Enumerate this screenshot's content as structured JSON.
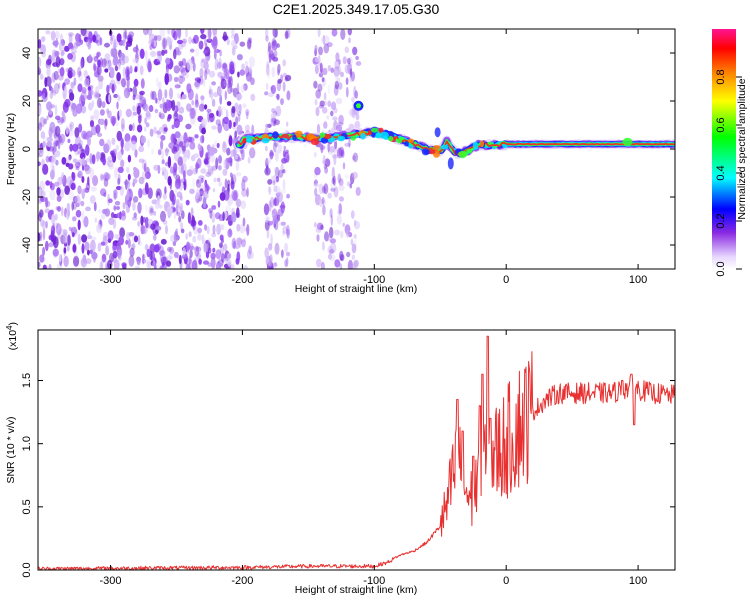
{
  "title": "C2E1.2025.349.17.05.G30",
  "chart_data": [
    {
      "type": "heatmap",
      "name": "spectrogram",
      "xlabel": "Height of straight line (km)",
      "ylabel": "Frequency (Hz)",
      "xlim": [
        -355,
        128
      ],
      "ylim": [
        -50,
        50
      ],
      "xticks": [
        -300,
        -200,
        -100,
        0,
        100
      ],
      "yticks": [
        -40,
        -20,
        0,
        20,
        40
      ],
      "colorbar": {
        "label": "Normalized spectral amplitude",
        "range": [
          0,
          1
        ],
        "ticks": [
          "0.0",
          "0.2",
          "0.4",
          "0.6",
          "0.8"
        ]
      },
      "ridge": [
        [
          -200,
          4
        ],
        [
          -190,
          4.5
        ],
        [
          -175,
          5
        ],
        [
          -160,
          5
        ],
        [
          -145,
          4.5
        ],
        [
          -130,
          5
        ],
        [
          -115,
          6
        ],
        [
          -100,
          7
        ],
        [
          -90,
          6
        ],
        [
          -80,
          4
        ],
        [
          -70,
          2
        ],
        [
          -60,
          0
        ],
        [
          -50,
          -1
        ],
        [
          -45,
          3
        ],
        [
          -38,
          -2
        ],
        [
          -30,
          -1
        ],
        [
          -20,
          2
        ],
        [
          -10,
          1.5
        ],
        [
          0,
          2
        ],
        [
          20,
          2
        ],
        [
          40,
          2
        ],
        [
          60,
          2
        ],
        [
          80,
          2
        ],
        [
          100,
          2
        ],
        [
          128,
          2
        ]
      ]
    },
    {
      "type": "line",
      "name": "snr",
      "xlabel": "Height of straight line (km)",
      "ylabel": "SNR (10 * v/v)",
      "yscale_label": "(x10",
      "yscale_exp": "4",
      "yscale_close": ")",
      "xlim": [
        -355,
        128
      ],
      "ylim": [
        0,
        1.9
      ],
      "xticks": [
        -300,
        -200,
        -100,
        0,
        100
      ],
      "yticks": [
        "0.0",
        "0.5",
        "1.0",
        "1.5"
      ],
      "color": "#e83030",
      "envelope": [
        [
          -355,
          0.01
        ],
        [
          -200,
          0.02
        ],
        [
          -150,
          0.03
        ],
        [
          -100,
          0.03
        ],
        [
          -90,
          0.06
        ],
        [
          -80,
          0.12
        ],
        [
          -70,
          0.15
        ],
        [
          -60,
          0.22
        ],
        [
          -50,
          0.35
        ],
        [
          -45,
          0.5
        ],
        [
          -40,
          0.75
        ],
        [
          -35,
          0.9
        ],
        [
          -30,
          0.6
        ],
        [
          -25,
          0.55
        ],
        [
          -20,
          0.8
        ],
        [
          -15,
          0.85
        ],
        [
          -10,
          0.9
        ],
        [
          -5,
          0.95
        ],
        [
          0,
          1.0
        ],
        [
          10,
          1.15
        ],
        [
          20,
          1.25
        ],
        [
          30,
          1.35
        ],
        [
          40,
          1.4
        ],
        [
          60,
          1.4
        ],
        [
          80,
          1.4
        ],
        [
          95,
          1.45
        ],
        [
          110,
          1.4
        ],
        [
          128,
          1.38
        ]
      ],
      "spikes": [
        [
          -37,
          1.35
        ],
        [
          -33,
          1.1
        ],
        [
          -25,
          0.9
        ],
        [
          -20,
          1.3
        ],
        [
          -18,
          1.55
        ],
        [
          -14,
          1.85
        ],
        [
          -12,
          1.2
        ],
        [
          95,
          1.55
        ],
        [
          88,
          1.5
        ],
        [
          97,
          1.15
        ]
      ]
    }
  ]
}
